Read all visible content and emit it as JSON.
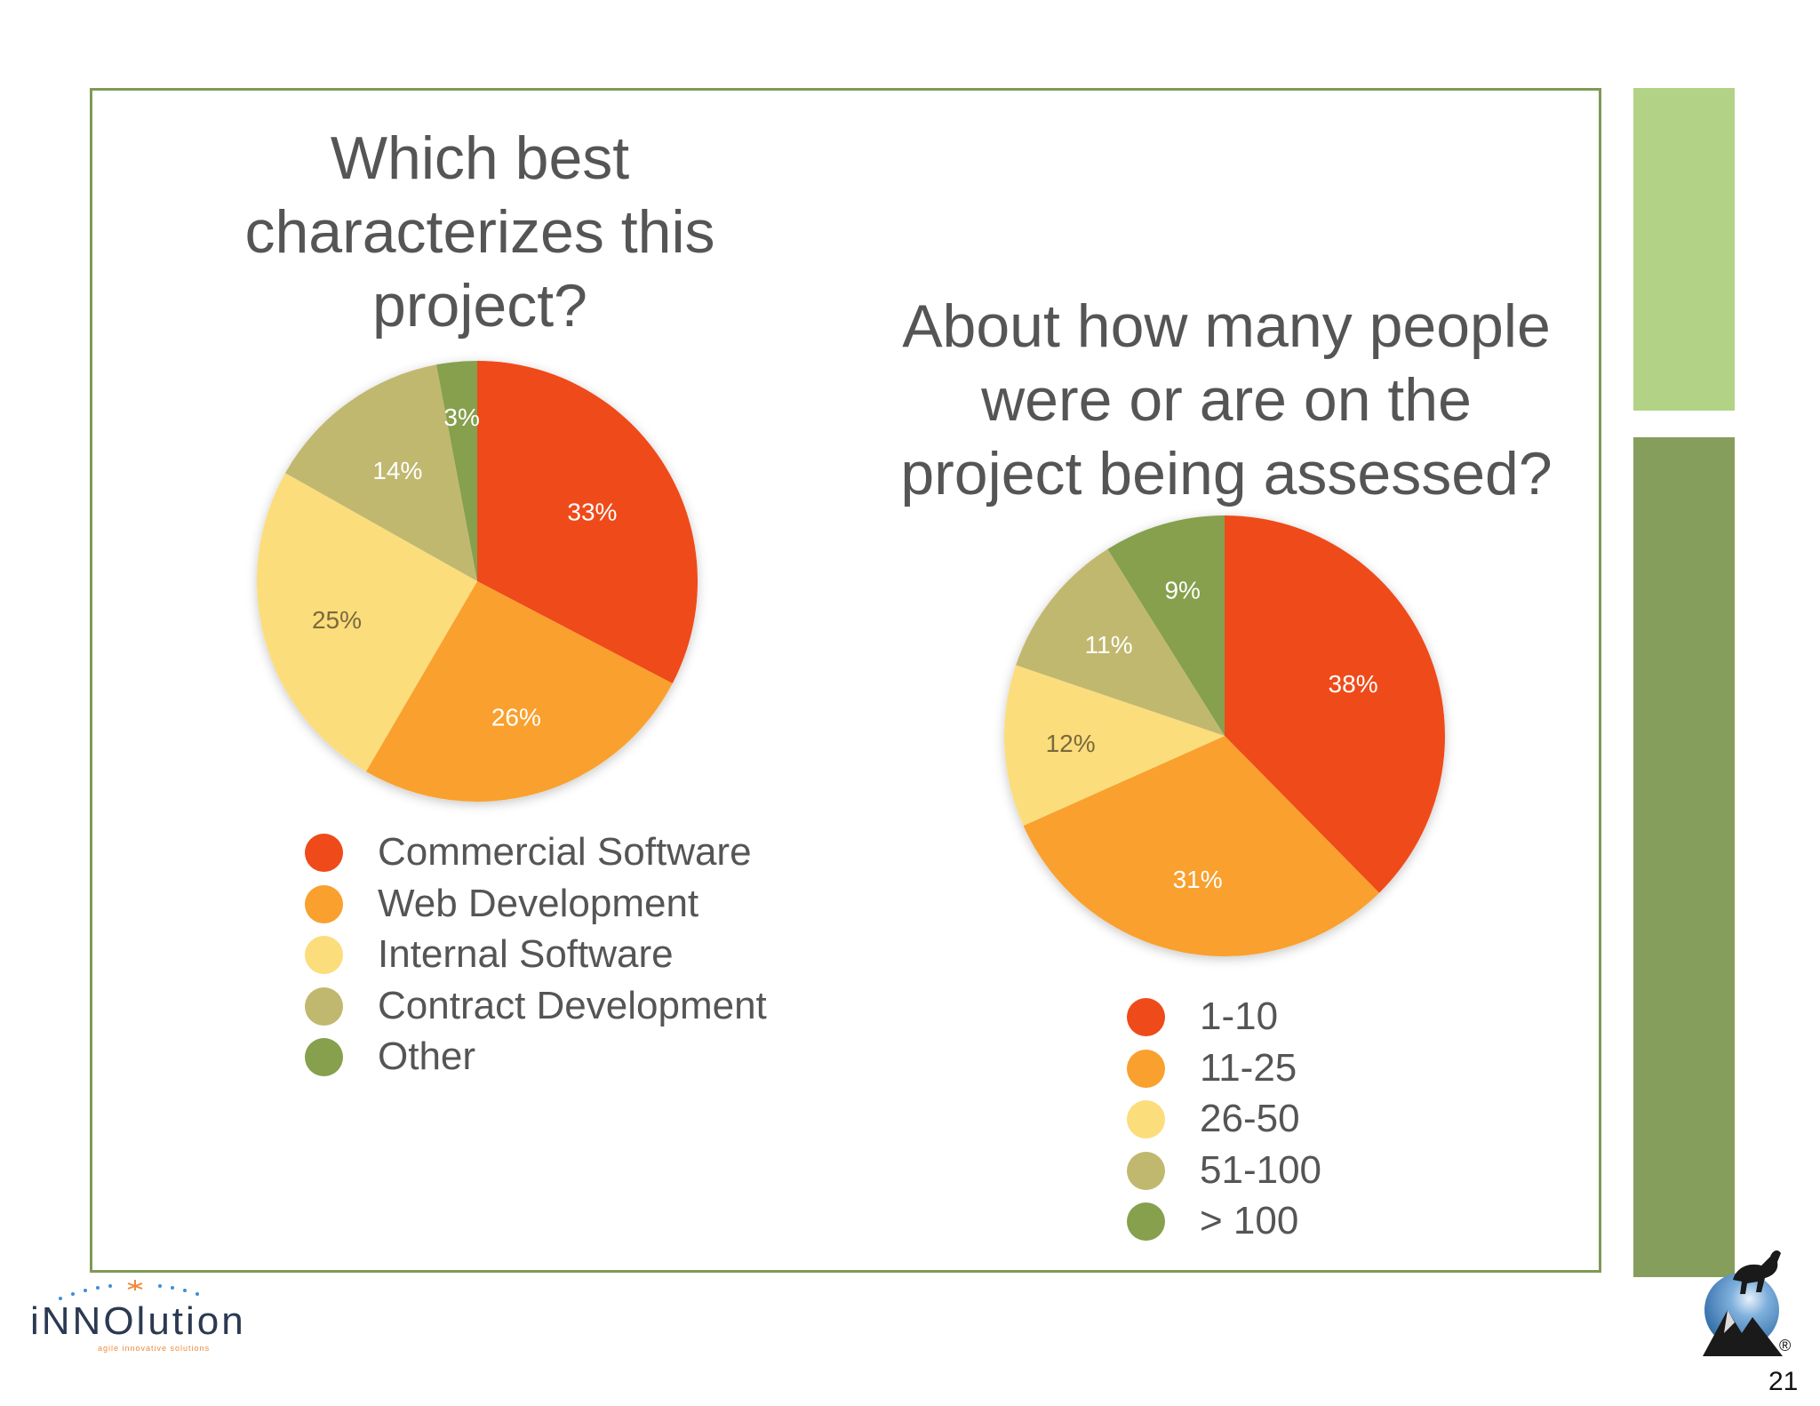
{
  "chart_data": [
    {
      "type": "pie",
      "title": "Which best characterizes this project?",
      "categories": [
        "Commercial Software",
        "Web Development",
        "Internal Software",
        "Contract Development",
        "Other"
      ],
      "values": [
        33,
        26,
        25,
        14,
        3
      ],
      "value_labels": [
        "33%",
        "26%",
        "25%",
        "14%",
        "3%"
      ],
      "colors": [
        "#ef4a1a",
        "#f9a02e",
        "#fbdd7c",
        "#c1b870",
        "#86a04d"
      ],
      "legend_position": "bottom"
    },
    {
      "type": "pie",
      "title": "About how many people were or are on the project being assessed?",
      "categories": [
        "1-10",
        "11-25",
        "26-50",
        "51-100",
        "> 100"
      ],
      "values": [
        38,
        31,
        12,
        11,
        9
      ],
      "value_labels": [
        "38%",
        "31%",
        "12%",
        "11%",
        "9%"
      ],
      "colors": [
        "#ef4a1a",
        "#f9a02e",
        "#fbdd7c",
        "#c1b870",
        "#86a04d"
      ],
      "legend_position": "bottom"
    }
  ],
  "titles": {
    "chart1": [
      "Which best",
      "characterizes this",
      "project?"
    ],
    "chart2": [
      "About how many people",
      "were or are on the",
      "project being assessed?"
    ]
  },
  "branding": {
    "left_logo": "iNNOlution",
    "left_tagline": "agile innovative solutions",
    "right_logo": "goat-mountain-logo",
    "registered_mark": "®"
  },
  "page_number": "21",
  "colors": {
    "frame": "#7f9a55",
    "bar_light": "#b2d386",
    "bar_dark": "#869e5c",
    "text": "#555555"
  }
}
